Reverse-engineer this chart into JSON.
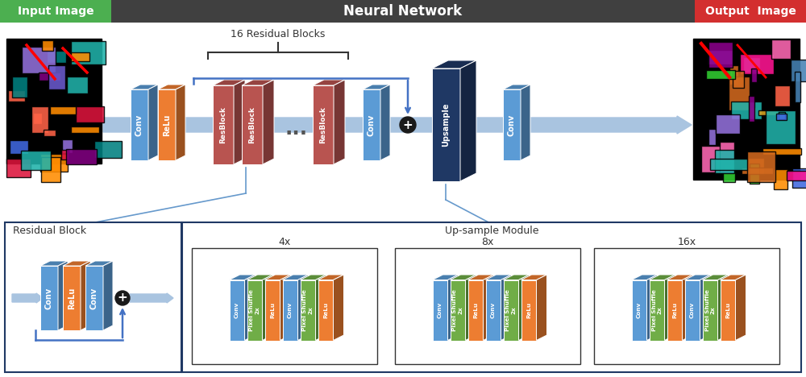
{
  "title_bar_color": "#404040",
  "title_text": "Neural Network",
  "input_label": "Input Image",
  "input_label_bg": "#4CAF50",
  "output_label": "Output  Image",
  "output_label_bg": "#D32F2F",
  "blue_color": "#5B9BD5",
  "blue_dark": "#4472C4",
  "blue_light": "#A9C4E0",
  "orange_color": "#ED7D31",
  "red_block_color": "#B85450",
  "dark_navy": "#1F3864",
  "green_color": "#70AD47",
  "arrow_color": "#A9C4E0",
  "box_border": "#1F3864",
  "residual_block_title": "Residual Block",
  "upsample_title": "Up-sample Module",
  "brace_label": "16 Residual Blocks",
  "fig_bg": "#FFFFFF",
  "plus_color": "#1a1a1a",
  "text_dark": "#333333",
  "sub_labels": [
    "4x",
    "8x",
    "16x"
  ]
}
